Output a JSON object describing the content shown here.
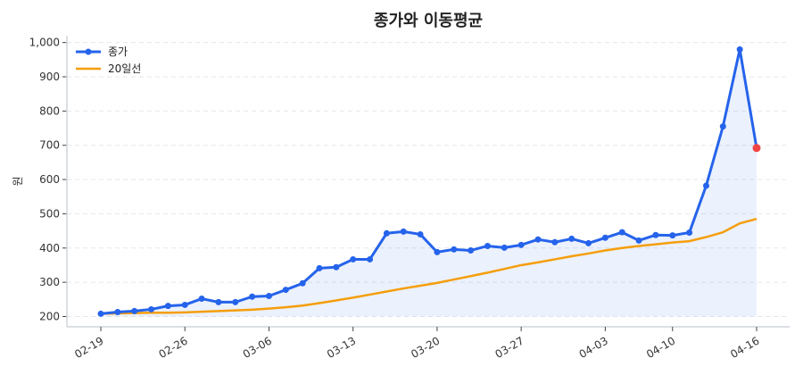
{
  "chart_data": {
    "type": "line",
    "title": "종가와 이동평균",
    "xlabel": "",
    "ylabel": "원",
    "ylim": [
      170,
      1020
    ],
    "yticks": [
      200,
      300,
      400,
      500,
      600,
      700,
      800,
      900,
      1000
    ],
    "ytick_labels": [
      "200",
      "300",
      "400",
      "500",
      "600",
      "700",
      "800",
      "900",
      "1,000"
    ],
    "xtick_labels": [
      {
        "index": 0,
        "label": "02-19"
      },
      {
        "index": 5,
        "label": "02-26"
      },
      {
        "index": 10,
        "label": "03-06"
      },
      {
        "index": 15,
        "label": "03-13"
      },
      {
        "index": 20,
        "label": "03-20"
      },
      {
        "index": 25,
        "label": "03-27"
      },
      {
        "index": 30,
        "label": "04-03"
      },
      {
        "index": 34,
        "label": "04-10"
      },
      {
        "index": 39,
        "label": "04-16"
      }
    ],
    "grid": "horizontal dashed",
    "legend_position": "top-left",
    "series": [
      {
        "name": "종가",
        "color": "#2563eb",
        "markers": true,
        "fill_below": true,
        "last_point_color": "#ef4444",
        "values": [
          208,
          213,
          216,
          221,
          231,
          234,
          252,
          242,
          242,
          258,
          260,
          278,
          297,
          341,
          344,
          367,
          367,
          443,
          448,
          440,
          388,
          396,
          393,
          406,
          401,
          409,
          425,
          417,
          427,
          414,
          430,
          446,
          422,
          438,
          437,
          445,
          582,
          755,
          980,
          692
        ]
      },
      {
        "name": "20일선",
        "color": "#f59e0b",
        "markers": false,
        "values": [
          208,
          209,
          210,
          211,
          211,
          212,
          214,
          216,
          218,
          220,
          223,
          227,
          232,
          239,
          247,
          255,
          264,
          273,
          282,
          290,
          298,
          308,
          318,
          328,
          339,
          350,
          358,
          367,
          376,
          384,
          393,
          400,
          406,
          411,
          416,
          420,
          432,
          446,
          472,
          485
        ]
      }
    ]
  }
}
